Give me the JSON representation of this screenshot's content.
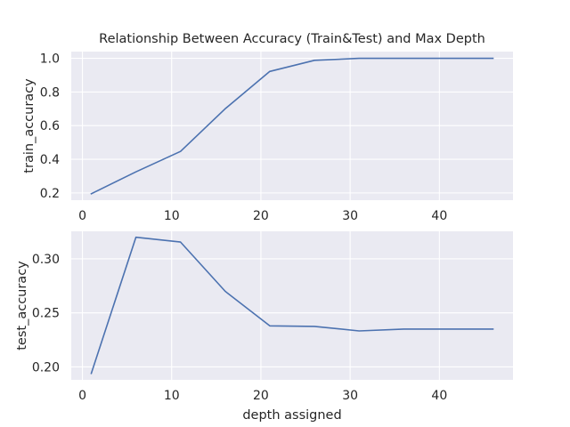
{
  "chart_data": [
    {
      "type": "line",
      "title": "Relationship Between Accuracy (Train&Test) and Max Depth",
      "xlabel": "",
      "ylabel": "train_accuracy",
      "xlim": [
        -1.25,
        48.25
      ],
      "ylim": [
        0.157,
        1.04
      ],
      "xticks": [
        0,
        10,
        20,
        30,
        40
      ],
      "yticks": [
        0.2,
        0.4,
        0.6,
        0.8,
        1.0
      ],
      "ytick_labels": [
        "0.2",
        "0.4",
        "0.6",
        "0.8",
        "1.0"
      ],
      "grid": true,
      "series": [
        {
          "x": [
            1,
            6,
            11,
            16,
            21,
            26,
            31,
            36,
            41,
            46
          ],
          "values": [
            0.195,
            0.325,
            0.447,
            0.7,
            0.922,
            0.988,
            1.0,
            1.0,
            1.0,
            1.0
          ]
        }
      ]
    },
    {
      "type": "line",
      "title": "",
      "xlabel": "depth assigned",
      "ylabel": "test_accuracy",
      "xlim": [
        -1.25,
        48.25
      ],
      "ylim": [
        0.188,
        0.3255
      ],
      "xticks": [
        0,
        10,
        20,
        30,
        40
      ],
      "yticks": [
        0.2,
        0.25,
        0.3
      ],
      "ytick_labels": [
        "0.20",
        "0.25",
        "0.30"
      ],
      "grid": true,
      "series": [
        {
          "x": [
            1,
            6,
            11,
            16,
            21,
            26,
            31,
            36,
            41,
            46
          ],
          "values": [
            0.194,
            0.32,
            0.3155,
            0.27,
            0.238,
            0.2375,
            0.2333,
            0.235,
            0.235,
            0.235
          ]
        }
      ]
    }
  ]
}
